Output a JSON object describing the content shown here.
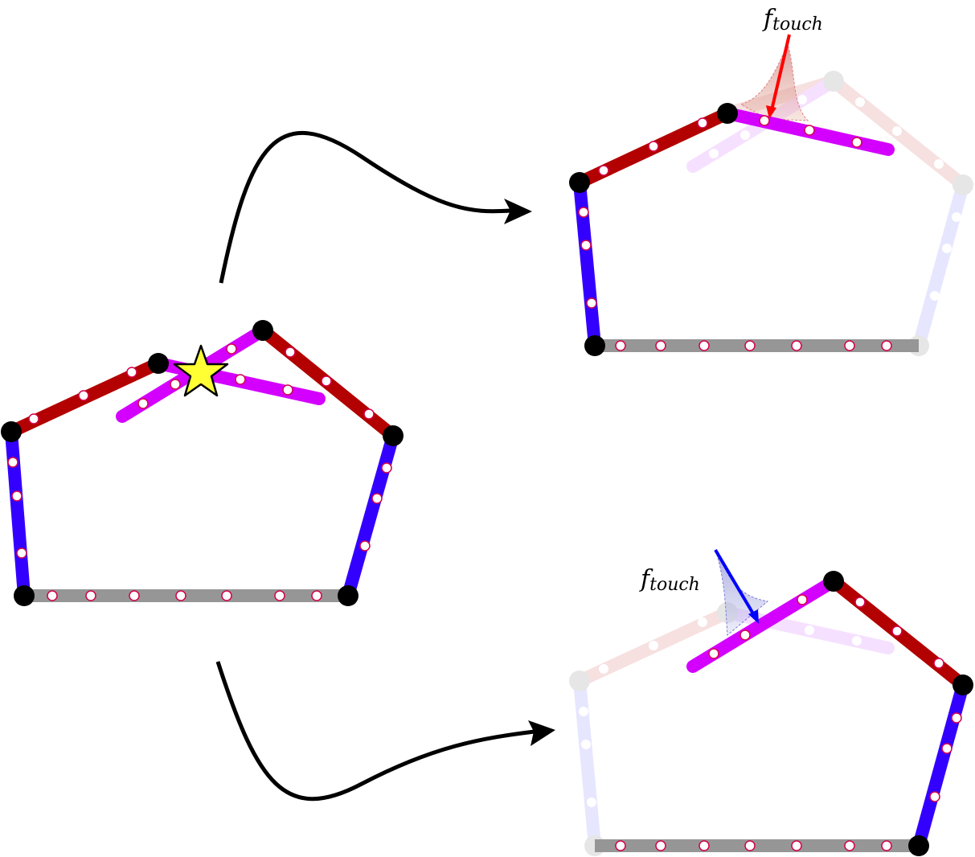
{
  "labels": {
    "top_force": {
      "main": "f",
      "sub": "touch"
    },
    "bottom_force": {
      "main": "f",
      "sub": "touch"
    }
  },
  "colors": {
    "dark_red": "#b30000",
    "blue": "#3300ff",
    "magenta": "#d400ff",
    "gray": "#969696",
    "joint": "#000000",
    "ghost_joint": "#e6e6e6",
    "marker_ring": "#d4004a",
    "star": "#ffff33",
    "force_red": "#ff0000",
    "force_blue": "#0000ff"
  },
  "icons": {
    "contact": "star-icon",
    "transition_upper": "curved-arrow-icon",
    "transition_lower": "curved-arrow-icon"
  }
}
